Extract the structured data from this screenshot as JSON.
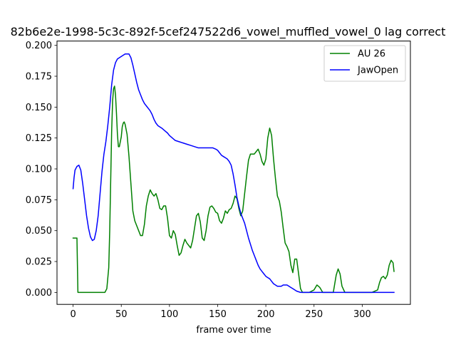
{
  "chart_data": {
    "type": "line",
    "title": "82b6e2e-1998-5c3c-892f-5cef247522d6_vowel_muffled_vowel_0  lag correct",
    "xlabel": "frame over time",
    "ylabel": "",
    "xlim": [
      -16.7,
      350.0
    ],
    "ylim": [
      -0.0097,
      0.2035
    ],
    "xticks": [
      0,
      50,
      100,
      150,
      200,
      250,
      300
    ],
    "yticks": [
      0.0,
      0.025,
      0.05,
      0.075,
      0.1,
      0.125,
      0.15,
      0.175,
      0.2
    ],
    "xtick_labels": [
      "0",
      "50",
      "100",
      "150",
      "200",
      "250",
      "300"
    ],
    "ytick_labels": [
      "0.000",
      "0.025",
      "0.050",
      "0.075",
      "0.100",
      "0.125",
      "0.150",
      "0.175",
      "0.200"
    ],
    "grid": false,
    "legend_position": "top-right",
    "series": [
      {
        "name": "AU 26",
        "color": "#008000",
        "points": [
          [
            0,
            0.044
          ],
          [
            4,
            0.044
          ],
          [
            5,
            0.0
          ],
          [
            10,
            0.0
          ],
          [
            20,
            0.0
          ],
          [
            30,
            0.0
          ],
          [
            33,
            0.0
          ],
          [
            35,
            0.003
          ],
          [
            37,
            0.02
          ],
          [
            38,
            0.05
          ],
          [
            39,
            0.09
          ],
          [
            40,
            0.13
          ],
          [
            41,
            0.155
          ],
          [
            42,
            0.165
          ],
          [
            43,
            0.167
          ],
          [
            44,
            0.16
          ],
          [
            45,
            0.145
          ],
          [
            46,
            0.128
          ],
          [
            47,
            0.118
          ],
          [
            48,
            0.118
          ],
          [
            50,
            0.126
          ],
          [
            51,
            0.134
          ],
          [
            52,
            0.137
          ],
          [
            53,
            0.138
          ],
          [
            54,
            0.136
          ],
          [
            56,
            0.128
          ],
          [
            58,
            0.11
          ],
          [
            60,
            0.088
          ],
          [
            62,
            0.066
          ],
          [
            64,
            0.058
          ],
          [
            66,
            0.054
          ],
          [
            68,
            0.05
          ],
          [
            70,
            0.046
          ],
          [
            72,
            0.046
          ],
          [
            74,
            0.055
          ],
          [
            76,
            0.07
          ],
          [
            78,
            0.078
          ],
          [
            80,
            0.083
          ],
          [
            82,
            0.08
          ],
          [
            84,
            0.078
          ],
          [
            86,
            0.08
          ],
          [
            88,
            0.075
          ],
          [
            90,
            0.068
          ],
          [
            92,
            0.067
          ],
          [
            94,
            0.07
          ],
          [
            96,
            0.07
          ],
          [
            98,
            0.06
          ],
          [
            100,
            0.046
          ],
          [
            102,
            0.044
          ],
          [
            104,
            0.05
          ],
          [
            106,
            0.047
          ],
          [
            108,
            0.038
          ],
          [
            110,
            0.03
          ],
          [
            112,
            0.032
          ],
          [
            114,
            0.038
          ],
          [
            116,
            0.043
          ],
          [
            118,
            0.04
          ],
          [
            120,
            0.038
          ],
          [
            122,
            0.036
          ],
          [
            124,
            0.042
          ],
          [
            126,
            0.052
          ],
          [
            128,
            0.062
          ],
          [
            130,
            0.064
          ],
          [
            132,
            0.057
          ],
          [
            134,
            0.044
          ],
          [
            136,
            0.042
          ],
          [
            138,
            0.05
          ],
          [
            140,
            0.062
          ],
          [
            142,
            0.069
          ],
          [
            144,
            0.07
          ],
          [
            146,
            0.068
          ],
          [
            148,
            0.065
          ],
          [
            150,
            0.064
          ],
          [
            152,
            0.058
          ],
          [
            154,
            0.056
          ],
          [
            156,
            0.06
          ],
          [
            158,
            0.066
          ],
          [
            160,
            0.064
          ],
          [
            162,
            0.067
          ],
          [
            164,
            0.068
          ],
          [
            166,
            0.072
          ],
          [
            168,
            0.078
          ],
          [
            170,
            0.076
          ],
          [
            172,
            0.068
          ],
          [
            174,
            0.062
          ],
          [
            176,
            0.066
          ],
          [
            178,
            0.08
          ],
          [
            180,
            0.094
          ],
          [
            182,
            0.107
          ],
          [
            184,
            0.112
          ],
          [
            186,
            0.112
          ],
          [
            188,
            0.112
          ],
          [
            190,
            0.114
          ],
          [
            192,
            0.116
          ],
          [
            194,
            0.112
          ],
          [
            196,
            0.106
          ],
          [
            198,
            0.103
          ],
          [
            200,
            0.108
          ],
          [
            202,
            0.125
          ],
          [
            204,
            0.133
          ],
          [
            206,
            0.127
          ],
          [
            208,
            0.108
          ],
          [
            210,
            0.092
          ],
          [
            212,
            0.078
          ],
          [
            214,
            0.074
          ],
          [
            216,
            0.065
          ],
          [
            218,
            0.052
          ],
          [
            220,
            0.04
          ],
          [
            222,
            0.037
          ],
          [
            224,
            0.033
          ],
          [
            226,
            0.022
          ],
          [
            228,
            0.016
          ],
          [
            230,
            0.027
          ],
          [
            232,
            0.027
          ],
          [
            234,
            0.015
          ],
          [
            236,
            0.003
          ],
          [
            238,
            0.0
          ],
          [
            245,
            0.0
          ],
          [
            250,
            0.002
          ],
          [
            253,
            0.006
          ],
          [
            256,
            0.004
          ],
          [
            259,
            0.0
          ],
          [
            265,
            0.0
          ],
          [
            270,
            0.0
          ],
          [
            273,
            0.014
          ],
          [
            275,
            0.019
          ],
          [
            277,
            0.015
          ],
          [
            279,
            0.005
          ],
          [
            282,
            0.0
          ],
          [
            290,
            0.0
          ],
          [
            300,
            0.0
          ],
          [
            310,
            0.0
          ],
          [
            316,
            0.002
          ],
          [
            318,
            0.008
          ],
          [
            320,
            0.012
          ],
          [
            322,
            0.013
          ],
          [
            324,
            0.011
          ],
          [
            326,
            0.014
          ],
          [
            328,
            0.022
          ],
          [
            330,
            0.026
          ],
          [
            332,
            0.024
          ],
          [
            333,
            0.017
          ]
        ]
      },
      {
        "name": "JawOpen",
        "color": "#0000ff",
        "points": [
          [
            0,
            0.084
          ],
          [
            1,
            0.093
          ],
          [
            2,
            0.099
          ],
          [
            4,
            0.102
          ],
          [
            6,
            0.103
          ],
          [
            8,
            0.099
          ],
          [
            10,
            0.088
          ],
          [
            12,
            0.075
          ],
          [
            14,
            0.062
          ],
          [
            16,
            0.052
          ],
          [
            18,
            0.045
          ],
          [
            20,
            0.042
          ],
          [
            22,
            0.043
          ],
          [
            24,
            0.05
          ],
          [
            26,
            0.062
          ],
          [
            28,
            0.08
          ],
          [
            30,
            0.098
          ],
          [
            32,
            0.112
          ],
          [
            34,
            0.122
          ],
          [
            36,
            0.135
          ],
          [
            38,
            0.15
          ],
          [
            40,
            0.168
          ],
          [
            42,
            0.18
          ],
          [
            44,
            0.186
          ],
          [
            46,
            0.189
          ],
          [
            48,
            0.19
          ],
          [
            50,
            0.191
          ],
          [
            52,
            0.192
          ],
          [
            54,
            0.193
          ],
          [
            56,
            0.193
          ],
          [
            58,
            0.193
          ],
          [
            60,
            0.19
          ],
          [
            62,
            0.184
          ],
          [
            64,
            0.177
          ],
          [
            66,
            0.17
          ],
          [
            68,
            0.164
          ],
          [
            70,
            0.16
          ],
          [
            72,
            0.156
          ],
          [
            74,
            0.153
          ],
          [
            76,
            0.151
          ],
          [
            78,
            0.149
          ],
          [
            80,
            0.147
          ],
          [
            82,
            0.144
          ],
          [
            84,
            0.14
          ],
          [
            86,
            0.137
          ],
          [
            88,
            0.135
          ],
          [
            90,
            0.134
          ],
          [
            92,
            0.133
          ],
          [
            95,
            0.131
          ],
          [
            98,
            0.129
          ],
          [
            100,
            0.127
          ],
          [
            103,
            0.125
          ],
          [
            106,
            0.123
          ],
          [
            110,
            0.122
          ],
          [
            114,
            0.121
          ],
          [
            118,
            0.12
          ],
          [
            122,
            0.119
          ],
          [
            126,
            0.118
          ],
          [
            130,
            0.117
          ],
          [
            135,
            0.117
          ],
          [
            140,
            0.117
          ],
          [
            145,
            0.117
          ],
          [
            148,
            0.116
          ],
          [
            150,
            0.115
          ],
          [
            152,
            0.113
          ],
          [
            154,
            0.111
          ],
          [
            156,
            0.11
          ],
          [
            158,
            0.109
          ],
          [
            160,
            0.108
          ],
          [
            162,
            0.106
          ],
          [
            164,
            0.103
          ],
          [
            166,
            0.096
          ],
          [
            168,
            0.087
          ],
          [
            170,
            0.077
          ],
          [
            172,
            0.07
          ],
          [
            174,
            0.064
          ],
          [
            176,
            0.06
          ],
          [
            178,
            0.056
          ],
          [
            180,
            0.05
          ],
          [
            182,
            0.044
          ],
          [
            184,
            0.039
          ],
          [
            186,
            0.034
          ],
          [
            188,
            0.03
          ],
          [
            190,
            0.026
          ],
          [
            192,
            0.022
          ],
          [
            194,
            0.019
          ],
          [
            196,
            0.017
          ],
          [
            198,
            0.015
          ],
          [
            200,
            0.013
          ],
          [
            202,
            0.012
          ],
          [
            204,
            0.011
          ],
          [
            206,
            0.009
          ],
          [
            208,
            0.007
          ],
          [
            210,
            0.006
          ],
          [
            212,
            0.005
          ],
          [
            214,
            0.005
          ],
          [
            216,
            0.005
          ],
          [
            218,
            0.006
          ],
          [
            220,
            0.006
          ],
          [
            222,
            0.006
          ],
          [
            224,
            0.005
          ],
          [
            226,
            0.004
          ],
          [
            228,
            0.003
          ],
          [
            230,
            0.002
          ],
          [
            232,
            0.001
          ],
          [
            234,
            0.0005
          ],
          [
            236,
            0.0
          ],
          [
            240,
            0.0
          ],
          [
            250,
            0.0
          ],
          [
            260,
            0.0
          ],
          [
            270,
            0.0
          ],
          [
            280,
            0.0
          ],
          [
            290,
            0.0
          ],
          [
            300,
            0.0
          ],
          [
            310,
            0.0
          ],
          [
            320,
            0.0
          ],
          [
            330,
            0.0
          ],
          [
            333,
            0.0
          ]
        ]
      }
    ]
  }
}
